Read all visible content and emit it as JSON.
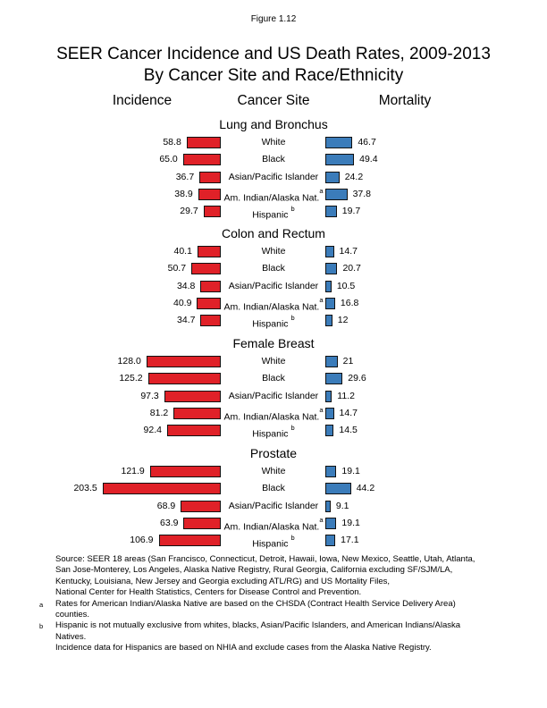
{
  "page": {
    "figure_label": "Figure 1.12",
    "title_line1": "SEER Cancer Incidence and US Death Rates, 2009-2013",
    "title_line2": "By Cancer Site and Race/Ethnicity",
    "columns": {
      "incidence": "Incidence",
      "cancer_site": "Cancer Site",
      "mortality": "Mortality"
    }
  },
  "colors": {
    "incidence_bar": "#e02128",
    "mortality_bar": "#3b7cba",
    "bar_border": "#111111",
    "text": "#000000",
    "background": "#ffffff"
  },
  "chart_data": {
    "type": "bar",
    "orientation": "horizontal-paired-butterfly",
    "series_names": [
      "Incidence",
      "Mortality"
    ],
    "categories": [
      "White",
      "Black",
      "Asian/Pacific Islander",
      "Am. Indian/Alaska Nat.",
      "Hispanic"
    ],
    "category_footnote_markers": [
      "",
      "",
      "",
      "a",
      "b"
    ],
    "category_marker_gap": [
      false,
      false,
      false,
      false,
      true
    ],
    "value_range_hint": [
      0,
      203.5
    ],
    "sections": [
      {
        "site": "Lung and Bronchus",
        "incidence": [
          58.8,
          65.0,
          36.7,
          38.9,
          29.7
        ],
        "incidence_labels": [
          "58.8",
          "65.0",
          "36.7",
          "38.9",
          "29.7"
        ],
        "mortality": [
          46.7,
          49.4,
          24.2,
          37.8,
          19.7
        ],
        "mortality_labels": [
          "46.7",
          "49.4",
          "24.2",
          "37.8",
          "19.7"
        ]
      },
      {
        "site": "Colon and Rectum",
        "incidence": [
          40.1,
          50.7,
          34.8,
          40.9,
          34.7
        ],
        "incidence_labels": [
          "40.1",
          "50.7",
          "34.8",
          "40.9",
          "34.7"
        ],
        "mortality": [
          14.7,
          20.7,
          10.5,
          16.8,
          12
        ],
        "mortality_labels": [
          "14.7",
          "20.7",
          "10.5",
          "16.8",
          "12"
        ]
      },
      {
        "site": "Female Breast",
        "incidence": [
          128.0,
          125.2,
          97.3,
          81.2,
          92.4
        ],
        "incidence_labels": [
          "128.0",
          "125.2",
          "97.3",
          "81.2",
          "92.4"
        ],
        "mortality": [
          21,
          29.6,
          11.2,
          14.7,
          14.5
        ],
        "mortality_labels": [
          "21",
          "29.6",
          "11.2",
          "14.7",
          "14.5"
        ]
      },
      {
        "site": "Prostate",
        "incidence": [
          121.9,
          203.5,
          68.9,
          63.9,
          106.9
        ],
        "incidence_labels": [
          "121.9",
          "203.5",
          "68.9",
          "63.9",
          "106.9"
        ],
        "mortality": [
          19.1,
          44.2,
          9.1,
          19.1,
          17.1
        ],
        "mortality_labels": [
          "19.1",
          "44.2",
          "9.1",
          "19.1",
          "17.1"
        ]
      }
    ]
  },
  "footnotes": [
    {
      "marker": "",
      "lines": [
        "Source: SEER 18 areas (San Francisco, Connecticut, Detroit, Hawaii, Iowa, New Mexico, Seattle, Utah, Atlanta,",
        "San Jose-Monterey, Los Angeles, Alaska Native Registry, Rural Georgia, California excluding SF/SJM/LA,",
        "Kentucky, Louisiana, New Jersey and Georgia excluding ATL/RG) and US Mortality Files,",
        "National Center for Health Statistics, Centers for Disease Control and Prevention."
      ]
    },
    {
      "marker": "a",
      "lines": [
        "Rates for American Indian/Alaska Native are based on the CHSDA (Contract Health Service Delivery Area)",
        "counties."
      ]
    },
    {
      "marker": "b",
      "lines": [
        "Hispanic is not mutually exclusive from whites, blacks, Asian/Pacific Islanders, and American Indians/Alaska",
        "Natives."
      ]
    },
    {
      "marker": "",
      "lines": [
        "Incidence data for Hispanics are based on NHIA and exclude cases from the Alaska Native Registry."
      ]
    }
  ]
}
